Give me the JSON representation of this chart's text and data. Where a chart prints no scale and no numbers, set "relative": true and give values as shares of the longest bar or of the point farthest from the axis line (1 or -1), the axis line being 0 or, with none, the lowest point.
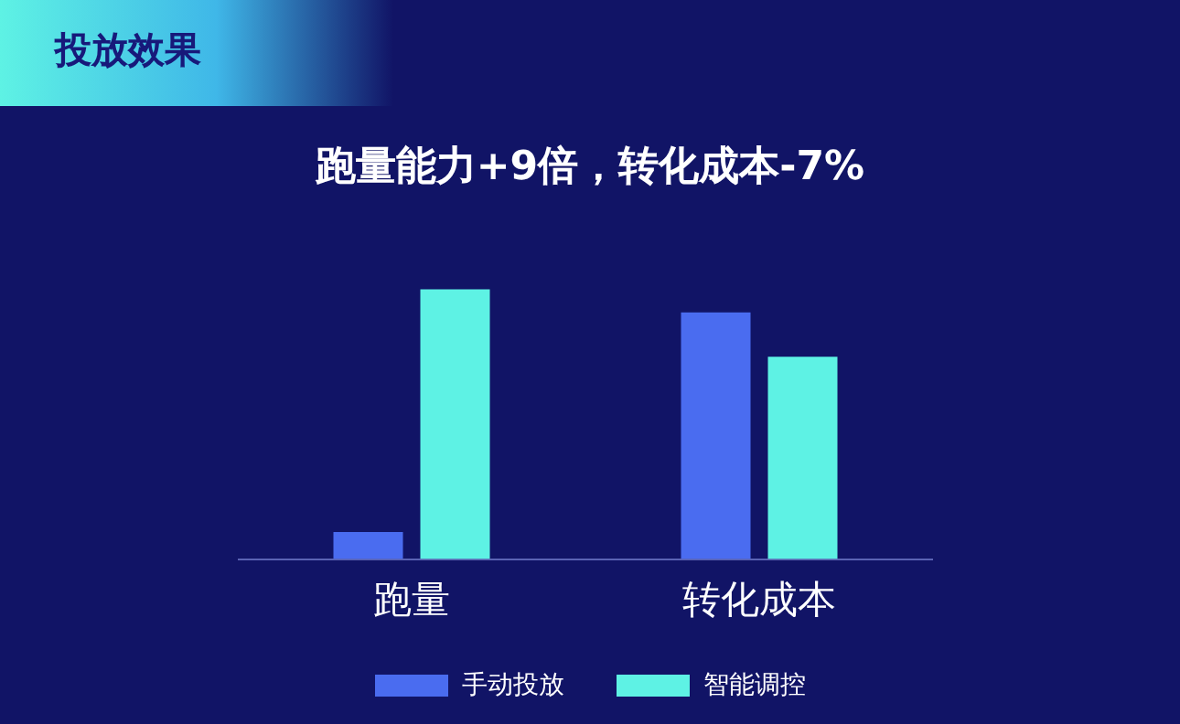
{
  "chart_data": {
    "type": "bar",
    "title": "投放效果",
    "subtitle": "跑量能力+9倍，转化成本-7%",
    "relative": true,
    "legend": "bottom",
    "categories": [
      "跑量",
      "转化成本"
    ],
    "series": [
      {
        "name": "手动投放",
        "color": "#4a6cf0",
        "values": [
          0.1,
          0.915
        ]
      },
      {
        "name": "智能调控",
        "color": "#5ef2e4",
        "values": [
          1,
          0.75
        ]
      }
    ]
  }
}
